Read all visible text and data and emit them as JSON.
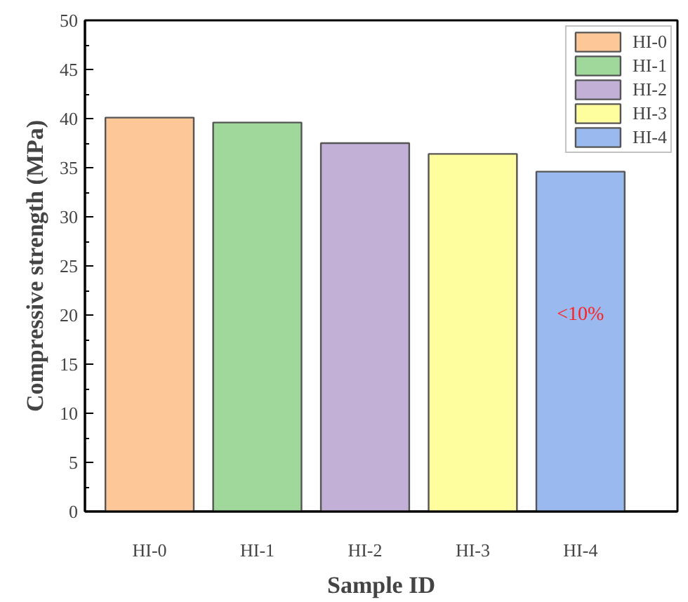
{
  "chart_data": {
    "type": "bar",
    "xlabel": "Sample ID",
    "ylabel": "Compressive strength (MPa)",
    "categories": [
      "HI-0",
      "HI-1",
      "HI-2",
      "HI-3",
      "HI-4"
    ],
    "series": [
      {
        "name": "HI-0",
        "color": "#fdc797",
        "values": [
          40.1,
          null,
          null,
          null,
          null
        ]
      },
      {
        "name": "HI-1",
        "color": "#a0d89c",
        "values": [
          null,
          39.6,
          null,
          null,
          null
        ]
      },
      {
        "name": "HI-2",
        "color": "#c3b0d6",
        "values": [
          null,
          null,
          37.5,
          null,
          null
        ]
      },
      {
        "name": "HI-3",
        "color": "#fefe9e",
        "values": [
          null,
          null,
          null,
          36.4,
          null
        ]
      },
      {
        "name": "HI-4",
        "color": "#9ab9ef",
        "values": [
          null,
          null,
          null,
          null,
          34.6
        ]
      }
    ],
    "ylim": [
      0,
      50
    ],
    "yticks": [
      0,
      5,
      10,
      15,
      20,
      25,
      30,
      35,
      40,
      45,
      50
    ],
    "grid": false,
    "legend": "top right",
    "annotations": [
      "<10%"
    ]
  }
}
